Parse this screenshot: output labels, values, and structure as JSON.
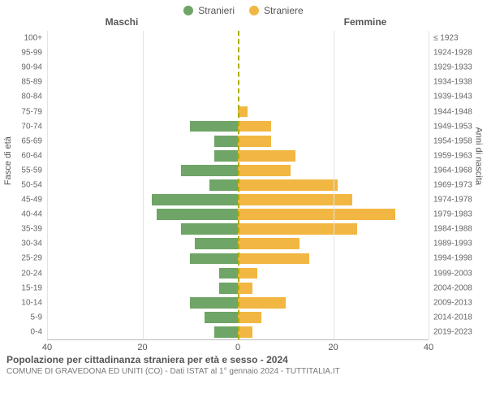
{
  "legend": {
    "male": {
      "label": "Stranieri",
      "color": "#6fa566"
    },
    "female": {
      "label": "Straniere",
      "color": "#f2b742"
    }
  },
  "column_headers": {
    "left": "Maschi",
    "right": "Femmine"
  },
  "y_axis_left_title": "Fasce di età",
  "y_axis_right_title": "Anni di nascita",
  "x_axis": {
    "max": 40,
    "ticks": [
      40,
      20,
      0,
      20,
      40
    ],
    "grid_color": "#e3e3e3",
    "divider_color": "#adad00"
  },
  "rows": [
    {
      "age": "100+",
      "birth": "≤ 1923",
      "male": 0,
      "female": 0
    },
    {
      "age": "95-99",
      "birth": "1924-1928",
      "male": 0,
      "female": 0
    },
    {
      "age": "90-94",
      "birth": "1929-1933",
      "male": 0,
      "female": 0
    },
    {
      "age": "85-89",
      "birth": "1934-1938",
      "male": 0,
      "female": 0
    },
    {
      "age": "80-84",
      "birth": "1939-1943",
      "male": 0,
      "female": 0
    },
    {
      "age": "75-79",
      "birth": "1944-1948",
      "male": 0,
      "female": 2
    },
    {
      "age": "70-74",
      "birth": "1949-1953",
      "male": 10,
      "female": 7
    },
    {
      "age": "65-69",
      "birth": "1954-1958",
      "male": 5,
      "female": 7
    },
    {
      "age": "60-64",
      "birth": "1959-1963",
      "male": 5,
      "female": 12
    },
    {
      "age": "55-59",
      "birth": "1964-1968",
      "male": 12,
      "female": 11
    },
    {
      "age": "50-54",
      "birth": "1969-1973",
      "male": 6,
      "female": 21
    },
    {
      "age": "45-49",
      "birth": "1974-1978",
      "male": 18,
      "female": 24
    },
    {
      "age": "40-44",
      "birth": "1979-1983",
      "male": 17,
      "female": 33
    },
    {
      "age": "35-39",
      "birth": "1984-1988",
      "male": 12,
      "female": 25
    },
    {
      "age": "30-34",
      "birth": "1989-1993",
      "male": 9,
      "female": 13
    },
    {
      "age": "25-29",
      "birth": "1994-1998",
      "male": 10,
      "female": 15
    },
    {
      "age": "20-24",
      "birth": "1999-2003",
      "male": 4,
      "female": 4
    },
    {
      "age": "15-19",
      "birth": "2004-2008",
      "male": 4,
      "female": 3
    },
    {
      "age": "10-14",
      "birth": "2009-2013",
      "male": 10,
      "female": 10
    },
    {
      "age": "5-9",
      "birth": "2014-2018",
      "male": 7,
      "female": 5
    },
    {
      "age": "0-4",
      "birth": "2019-2023",
      "male": 5,
      "female": 3
    }
  ],
  "caption": {
    "line1": "Popolazione per cittadinanza straniera per età e sesso - 2024",
    "line2": "COMUNE DI GRAVEDONA ED UNITI (CO) - Dati ISTAT al 1° gennaio 2024 - TUTTITALIA.IT"
  },
  "style": {
    "bg": "#ffffff",
    "text": "#555555",
    "bar_height_pct": 76
  }
}
